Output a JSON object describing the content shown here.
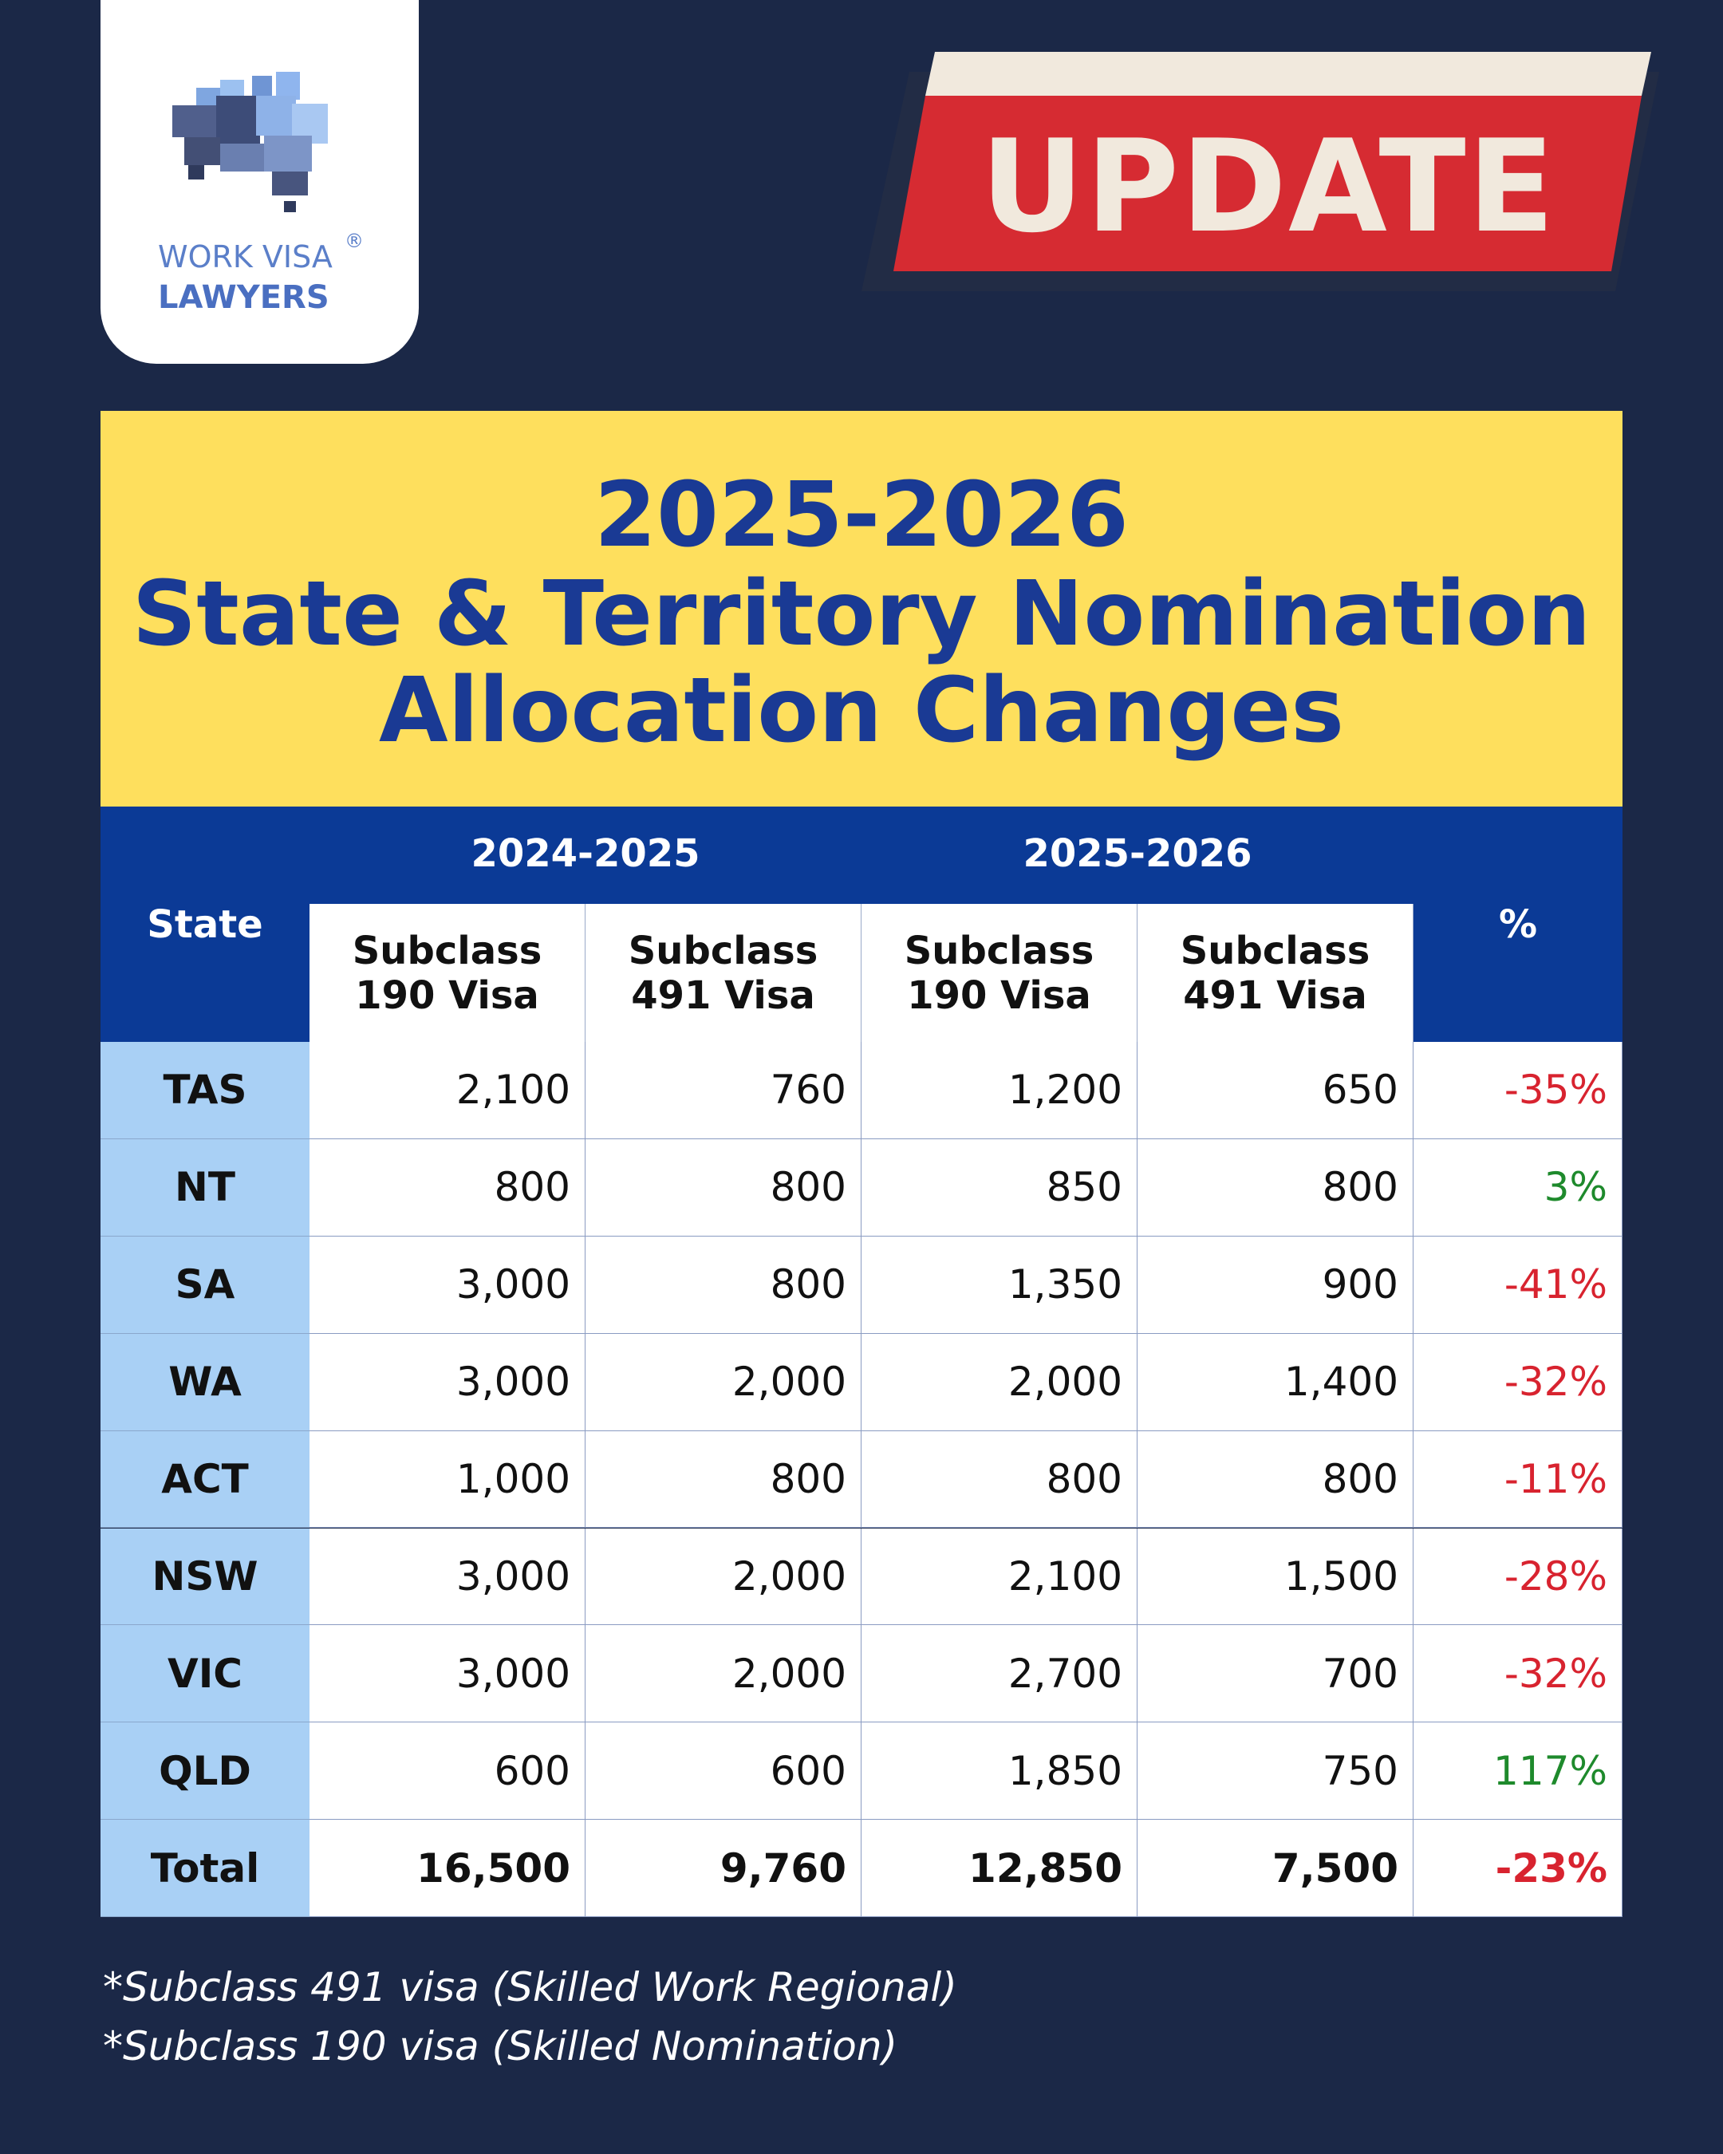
{
  "logo": {
    "line1": "WORK VISA",
    "mark": "®",
    "line2": "LAWYERS"
  },
  "badge": "UPDATE",
  "title": {
    "line1": "2025-2026",
    "line2": "State & Territory Nomination",
    "line3": "Allocation Changes"
  },
  "table": {
    "header": {
      "state": "State",
      "groups": [
        "2024-2025",
        "2025-2026"
      ],
      "columns": [
        [
          "Subclass",
          "190 Visa"
        ],
        [
          "Subclass",
          "491 Visa"
        ],
        [
          "Subclass",
          "190 Visa"
        ],
        [
          "Subclass",
          "491 Visa"
        ]
      ],
      "pct": "%"
    },
    "rows": [
      [
        "TAS",
        "2,100",
        "760",
        "1,200",
        "650",
        "-35%"
      ],
      [
        "NT",
        "800",
        "800",
        "850",
        "800",
        "3%"
      ],
      [
        "SA",
        "3,000",
        "800",
        "1,350",
        "900",
        "-41%"
      ],
      [
        "WA",
        "3,000",
        "2,000",
        "2,000",
        "1,400",
        "-32%"
      ],
      [
        "ACT",
        "1,000",
        "800",
        "800",
        "800",
        "-11%"
      ],
      [
        "NSW",
        "3,000",
        "2,000",
        "2,100",
        "1,500",
        "-28%"
      ],
      [
        "VIC",
        "3,000",
        "2,000",
        "2,700",
        "700",
        "-32%"
      ],
      [
        "QLD",
        "600",
        "600",
        "1,850",
        "750",
        "117%"
      ]
    ],
    "total": [
      "Total",
      "16,500",
      "9,760",
      "12,850",
      "7,500",
      "-23%"
    ]
  },
  "footnotes": [
    "*Subclass 491 visa (Skilled Work Regional)",
    "*Subclass 190 visa (Skilled Nomination)"
  ]
}
